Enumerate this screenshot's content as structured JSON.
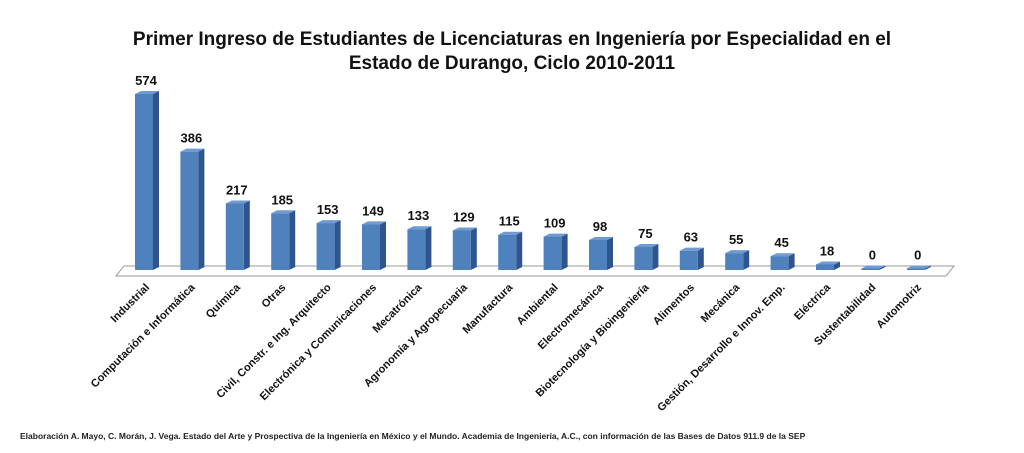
{
  "chart_data": {
    "type": "bar",
    "title": "Primer Ingreso de Estudiantes de Licenciaturas en Ingeniería por Especialidad en el Estado de Durango, Ciclo 2010-2011",
    "source": "Elaboración A. Mayo, C. Morán, J. Vega. Estado del Arte y Prospectiva de la Ingeniería en México y el Mundo. Academia de Ingeniería, A.C., con información de las Bases de Datos 911.9 de la SEP",
    "categories": [
      "Industrial",
      "Computación e Informática",
      "Química",
      "Otras",
      "Civil, Constr. e Ing. Arquitecto",
      "Electrónica y Comunicaciones",
      "Mecatrónica",
      "Agronomía y Agropecuaria",
      "Manufactura",
      "Ambiental",
      "Electromecánica",
      "Biotecnología y Bioingeniería",
      "Alimentos",
      "Mecánica",
      "Gestión, Desarrollo e Innov. Emp.",
      "Eléctrica",
      "Sustentabilidad",
      "Automotriz"
    ],
    "values": [
      574,
      386,
      217,
      185,
      153,
      149,
      133,
      129,
      115,
      109,
      98,
      75,
      63,
      55,
      45,
      18,
      0,
      0
    ],
    "data_labels": true,
    "three_d": true,
    "colors": {
      "bar_front": "#4f81bd",
      "bar_side": "#2f5590",
      "bar_top": "#6f9ad3",
      "floor": "#ffffff"
    }
  }
}
